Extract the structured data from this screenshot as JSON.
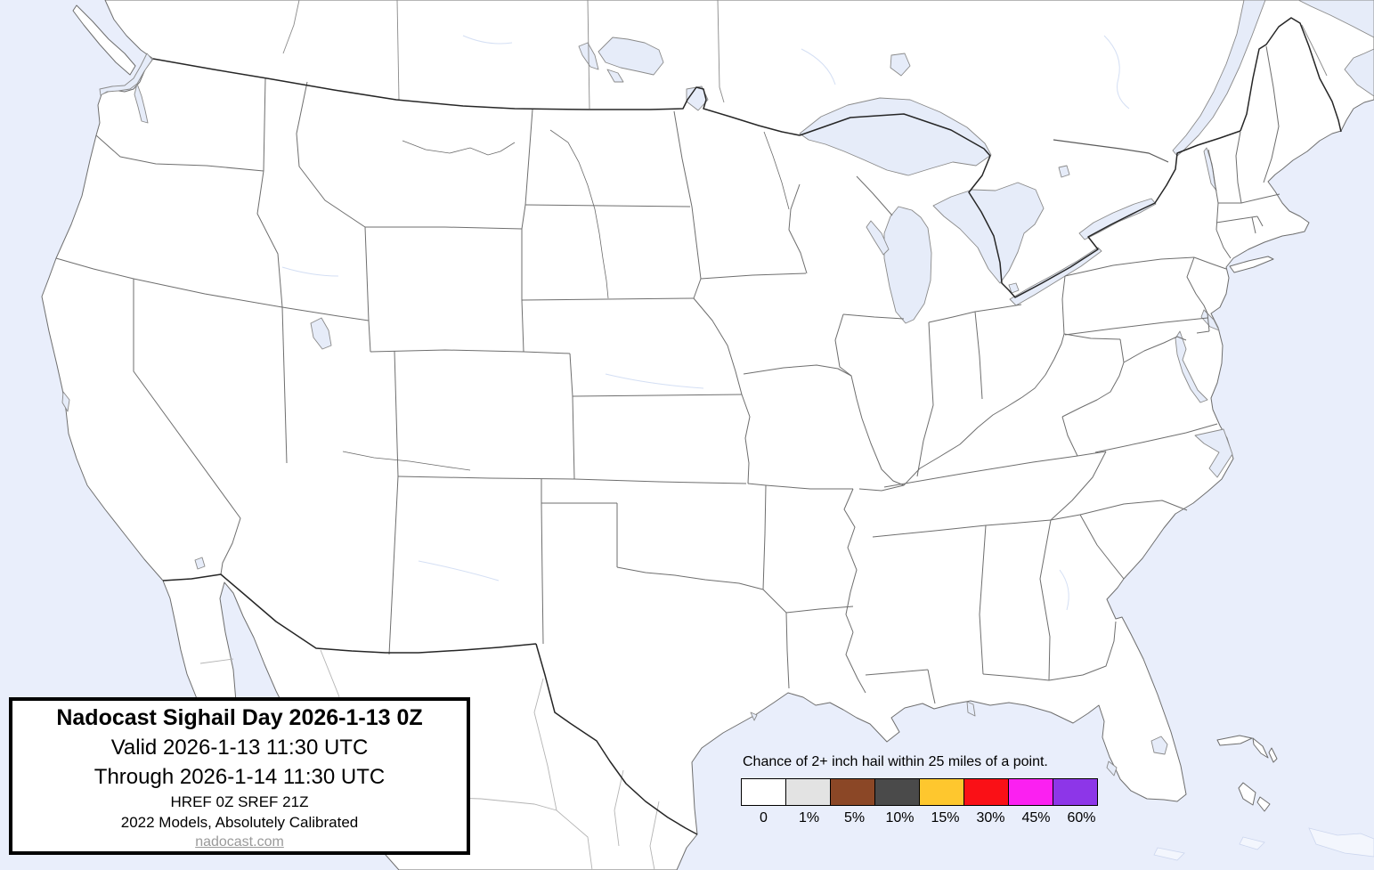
{
  "map": {
    "region": "contiguous-united-states",
    "ocean_color": "#e9eefb",
    "land_color": "#ffffff",
    "lake_color": "#e6ecf9",
    "state_border_color": "#6e6e6e",
    "national_border_color": "#262626"
  },
  "title_box": {
    "title": "Nadocast Sighail Day 2026-1-13 0Z",
    "valid_line": "Valid 2026-1-13 11:30 UTC",
    "through_line": "Through 2026-1-14 11:30 UTC",
    "models_line": "HREF 0Z SREF 21Z",
    "calibration_line": "2022 Models, Absolutely Calibrated",
    "link": "nadocast.com"
  },
  "legend": {
    "title": "Chance of 2+ inch hail within 25 miles of a point.",
    "entries": [
      {
        "label": "0",
        "color": "#ffffff"
      },
      {
        "label": "1%",
        "color": "#e3e3e3"
      },
      {
        "label": "5%",
        "color": "#8b4726"
      },
      {
        "label": "10%",
        "color": "#4a4a4a"
      },
      {
        "label": "15%",
        "color": "#fec72e"
      },
      {
        "label": "30%",
        "color": "#fa1016"
      },
      {
        "label": "45%",
        "color": "#fb20f1"
      },
      {
        "label": "60%",
        "color": "#8d36e8"
      }
    ]
  }
}
